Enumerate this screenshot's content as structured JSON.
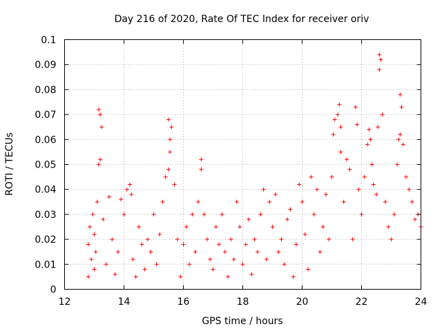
{
  "chart_data": {
    "type": "scatter",
    "title": "Day 216 of 2020, Rate Of TEC Index for receiver oriv",
    "xlabel": "GPS time / hours",
    "ylabel": "ROTI / TECUs",
    "xlim": [
      12,
      24
    ],
    "ylim": [
      0,
      0.1
    ],
    "xticks": [
      12,
      14,
      16,
      18,
      20,
      22,
      24
    ],
    "yticks": [
      0,
      0.01,
      0.02,
      0.03,
      0.04,
      0.05,
      0.06,
      0.07,
      0.08,
      0.09,
      0.1
    ],
    "xtick_labels": [
      "12",
      "14",
      "16",
      "18",
      "20",
      "22",
      "24"
    ],
    "ytick_labels": [
      "0",
      "0.01",
      "0.02",
      "0.03",
      "0.04",
      "0.05",
      "0.06",
      "0.07",
      "0.08",
      "0.09",
      "0.1"
    ],
    "grid": true,
    "marker": "+",
    "color": "#ff0000",
    "series": [
      {
        "name": "ROTI",
        "x": [
          12.8,
          12.8,
          12.85,
          12.9,
          12.95,
          13.0,
          13.0,
          13.05,
          13.1,
          13.15,
          13.2,
          13.25,
          13.2,
          13.15,
          13.3,
          13.4,
          13.5,
          13.6,
          13.7,
          13.8,
          13.9,
          14.0,
          14.1,
          14.2,
          14.25,
          14.3,
          14.4,
          14.5,
          14.6,
          14.7,
          14.8,
          14.9,
          15.0,
          15.1,
          15.2,
          15.3,
          15.4,
          15.5,
          15.55,
          15.6,
          15.55,
          15.5,
          15.7,
          15.8,
          15.9,
          16.0,
          16.1,
          16.2,
          16.3,
          16.4,
          16.5,
          16.6,
          16.6,
          16.7,
          16.8,
          16.9,
          17.0,
          17.1,
          17.2,
          17.3,
          17.4,
          17.5,
          17.6,
          17.7,
          17.8,
          17.9,
          18.0,
          18.1,
          18.2,
          18.3,
          18.4,
          18.5,
          18.6,
          18.7,
          18.8,
          18.9,
          19.0,
          19.1,
          19.2,
          19.3,
          19.4,
          19.5,
          19.6,
          19.7,
          19.8,
          19.9,
          20.0,
          20.1,
          20.2,
          20.3,
          20.4,
          20.5,
          20.6,
          20.7,
          20.8,
          20.9,
          21.0,
          21.05,
          21.1,
          21.2,
          21.25,
          21.3,
          21.3,
          21.4,
          21.5,
          21.6,
          21.7,
          21.8,
          21.85,
          21.9,
          22.0,
          22.1,
          22.2,
          22.25,
          22.3,
          22.35,
          22.4,
          22.5,
          22.55,
          22.6,
          22.6,
          22.65,
          22.7,
          22.8,
          22.9,
          23.0,
          23.1,
          23.2,
          23.25,
          23.3,
          23.35,
          23.3,
          23.4,
          23.5,
          23.6,
          23.7,
          23.8,
          23.9,
          24.0
        ],
        "y": [
          0.018,
          0.005,
          0.025,
          0.012,
          0.03,
          0.008,
          0.022,
          0.015,
          0.035,
          0.072,
          0.07,
          0.065,
          0.052,
          0.05,
          0.028,
          0.01,
          0.037,
          0.02,
          0.006,
          0.015,
          0.036,
          0.03,
          0.04,
          0.042,
          0.038,
          0.012,
          0.005,
          0.025,
          0.018,
          0.008,
          0.02,
          0.015,
          0.03,
          0.01,
          0.022,
          0.035,
          0.045,
          0.068,
          0.06,
          0.065,
          0.055,
          0.048,
          0.042,
          0.02,
          0.005,
          0.018,
          0.025,
          0.01,
          0.03,
          0.015,
          0.035,
          0.052,
          0.048,
          0.03,
          0.02,
          0.012,
          0.008,
          0.025,
          0.018,
          0.03,
          0.015,
          0.005,
          0.02,
          0.012,
          0.035,
          0.025,
          0.01,
          0.018,
          0.028,
          0.006,
          0.02,
          0.015,
          0.03,
          0.04,
          0.012,
          0.035,
          0.025,
          0.038,
          0.015,
          0.02,
          0.01,
          0.028,
          0.032,
          0.005,
          0.018,
          0.042,
          0.035,
          0.022,
          0.008,
          0.045,
          0.03,
          0.04,
          0.015,
          0.025,
          0.038,
          0.02,
          0.045,
          0.062,
          0.068,
          0.07,
          0.074,
          0.065,
          0.055,
          0.035,
          0.052,
          0.048,
          0.02,
          0.073,
          0.066,
          0.04,
          0.03,
          0.045,
          0.058,
          0.064,
          0.06,
          0.05,
          0.042,
          0.038,
          0.065,
          0.094,
          0.088,
          0.092,
          0.07,
          0.035,
          0.025,
          0.02,
          0.03,
          0.05,
          0.06,
          0.078,
          0.073,
          0.062,
          0.058,
          0.045,
          0.04,
          0.035,
          0.028,
          0.03,
          0.025
        ]
      }
    ]
  }
}
